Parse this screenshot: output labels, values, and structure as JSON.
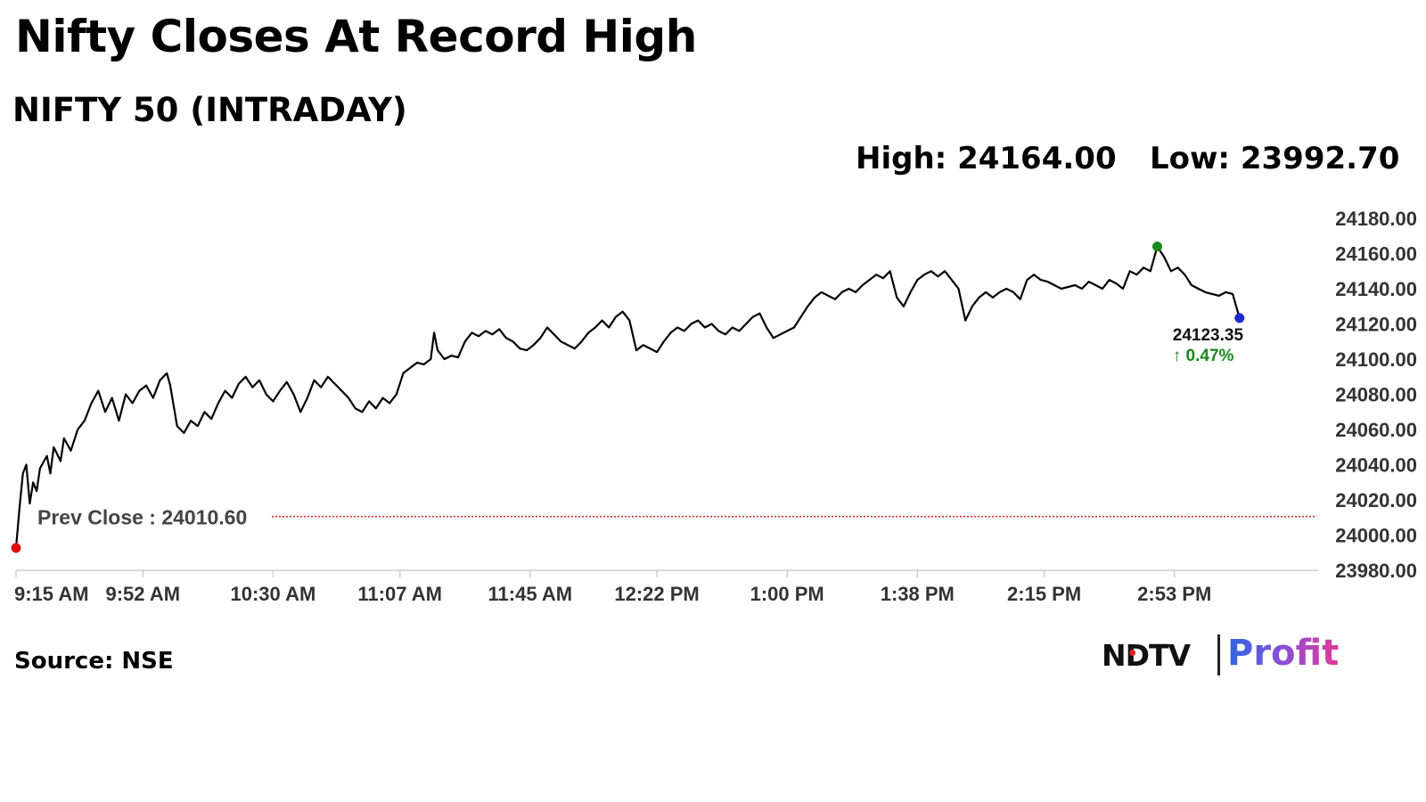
{
  "header": {
    "title": "Nifty Closes At Record High",
    "subtitle": "NIFTY 50 (INTRADAY)",
    "high_text": "High: 24164.00",
    "low_text": "Low: 23992.70"
  },
  "footer": {
    "source": "Source: NSE",
    "logo_left": "NDTV",
    "logo_right": "Profit"
  },
  "colors": {
    "line": "#000000",
    "prev_close_line": "#d42020",
    "high_marker": "#1a8a1a",
    "low_marker": "#e01010",
    "last_marker": "#1f2bd0",
    "change_positive": "#1a8a1a"
  },
  "chart_data": {
    "type": "line",
    "title": "NIFTY 50 (INTRADAY)",
    "xlabel": "",
    "ylabel": "",
    "x_range": [
      "9:15 AM",
      "3:30 PM"
    ],
    "ylim": [
      23980,
      24180
    ],
    "x_ticks": [
      "9:15 AM",
      "9:52 AM",
      "10:30 AM",
      "11:07 AM",
      "11:45 AM",
      "12:22 PM",
      "1:00 PM",
      "1:38 PM",
      "2:15 PM",
      "2:53 PM"
    ],
    "y_ticks": [
      "24180.00",
      "24160.00",
      "24140.00",
      "24120.00",
      "24100.00",
      "24080.00",
      "24060.00",
      "24040.00",
      "24020.00",
      "24000.00",
      "23980.00"
    ],
    "prev_close": 24010.6,
    "prev_close_label": "Prev Close : 24010.60",
    "high": 24164.0,
    "low": 23992.7,
    "last_value_label": "24123.35",
    "change_label": "↑ 0.47%",
    "grid": false,
    "legend": "none",
    "series": [
      {
        "points": [
          [
            "9:15 AM",
            23992.7
          ],
          [
            "9:16 AM",
            24015
          ],
          [
            "9:17 AM",
            24035
          ],
          [
            "9:18 AM",
            24040
          ],
          [
            "9:19 AM",
            24018
          ],
          [
            "9:20 AM",
            24030
          ],
          [
            "9:21 AM",
            24025
          ],
          [
            "9:22 AM",
            24038
          ],
          [
            "9:24 AM",
            24045
          ],
          [
            "9:25 AM",
            24035
          ],
          [
            "9:26 AM",
            24050
          ],
          [
            "9:28 AM",
            24042
          ],
          [
            "9:29 AM",
            24055
          ],
          [
            "9:31 AM",
            24048
          ],
          [
            "9:33 AM",
            24060
          ],
          [
            "9:35 AM",
            24065
          ],
          [
            "9:37 AM",
            24075
          ],
          [
            "9:39 AM",
            24082
          ],
          [
            "9:41 AM",
            24070
          ],
          [
            "9:43 AM",
            24078
          ],
          [
            "9:45 AM",
            24065
          ],
          [
            "9:47 AM",
            24080
          ],
          [
            "9:49 AM",
            24075
          ],
          [
            "9:51 AM",
            24082
          ],
          [
            "9:53 AM",
            24085
          ],
          [
            "9:55 AM",
            24078
          ],
          [
            "9:57 AM",
            24088
          ],
          [
            "9:59 AM",
            24092
          ],
          [
            "10:00 AM",
            24085
          ],
          [
            "10:02 AM",
            24062
          ],
          [
            "10:04 AM",
            24058
          ],
          [
            "10:06 AM",
            24065
          ],
          [
            "10:08 AM",
            24062
          ],
          [
            "10:10 AM",
            24070
          ],
          [
            "10:12 AM",
            24066
          ],
          [
            "10:14 AM",
            24075
          ],
          [
            "10:16 AM",
            24082
          ],
          [
            "10:18 AM",
            24078
          ],
          [
            "10:20 AM",
            24086
          ],
          [
            "10:22 AM",
            24090
          ],
          [
            "10:24 AM",
            24084
          ],
          [
            "10:26 AM",
            24088
          ],
          [
            "10:28 AM",
            24080
          ],
          [
            "10:30 AM",
            24076
          ],
          [
            "10:32 AM",
            24082
          ],
          [
            "10:34 AM",
            24087
          ],
          [
            "10:36 AM",
            24080
          ],
          [
            "10:38 AM",
            24070
          ],
          [
            "10:40 AM",
            24078
          ],
          [
            "10:42 AM",
            24088
          ],
          [
            "10:44 AM",
            24084
          ],
          [
            "10:46 AM",
            24090
          ],
          [
            "10:48 AM",
            24086
          ],
          [
            "10:50 AM",
            24082
          ],
          [
            "10:52 AM",
            24078
          ],
          [
            "10:54 AM",
            24072
          ],
          [
            "10:56 AM",
            24070
          ],
          [
            "10:58 AM",
            24076
          ],
          [
            "11:00 AM",
            24072
          ],
          [
            "11:02 AM",
            24078
          ],
          [
            "11:04 AM",
            24075
          ],
          [
            "11:06 AM",
            24080
          ],
          [
            "11:08 AM",
            24092
          ],
          [
            "11:10 AM",
            24095
          ],
          [
            "11:12 AM",
            24098
          ],
          [
            "11:14 AM",
            24097
          ],
          [
            "11:16 AM",
            24100
          ],
          [
            "11:17 AM",
            24115
          ],
          [
            "11:18 AM",
            24105
          ],
          [
            "11:20 AM",
            24100
          ],
          [
            "11:22 AM",
            24102
          ],
          [
            "11:24 AM",
            24101
          ],
          [
            "11:26 AM",
            24110
          ],
          [
            "11:28 AM",
            24115
          ],
          [
            "11:30 AM",
            24113
          ],
          [
            "11:32 AM",
            24116
          ],
          [
            "11:34 AM",
            24114
          ],
          [
            "11:36 AM",
            24117
          ],
          [
            "11:38 AM",
            24112
          ],
          [
            "11:40 AM",
            24110
          ],
          [
            "11:42 AM",
            24106
          ],
          [
            "11:44 AM",
            24105
          ],
          [
            "11:46 AM",
            24108
          ],
          [
            "11:48 AM",
            24112
          ],
          [
            "11:50 AM",
            24118
          ],
          [
            "11:52 AM",
            24114
          ],
          [
            "11:54 AM",
            24110
          ],
          [
            "11:56 AM",
            24108
          ],
          [
            "11:58 AM",
            24106
          ],
          [
            "12:00 PM",
            24110
          ],
          [
            "12:02 PM",
            24115
          ],
          [
            "12:04 PM",
            24118
          ],
          [
            "12:06 PM",
            24122
          ],
          [
            "12:08 PM",
            24118
          ],
          [
            "12:10 PM",
            24124
          ],
          [
            "12:12 PM",
            24127
          ],
          [
            "12:14 PM",
            24122
          ],
          [
            "12:16 PM",
            24105
          ],
          [
            "12:18 PM",
            24108
          ],
          [
            "12:20 PM",
            24106
          ],
          [
            "12:22 PM",
            24104
          ],
          [
            "12:24 PM",
            24110
          ],
          [
            "12:26 PM",
            24115
          ],
          [
            "12:28 PM",
            24118
          ],
          [
            "12:30 PM",
            24116
          ],
          [
            "12:32 PM",
            24120
          ],
          [
            "12:34 PM",
            24122
          ],
          [
            "12:36 PM",
            24118
          ],
          [
            "12:38 PM",
            24120
          ],
          [
            "12:40 PM",
            24116
          ],
          [
            "12:42 PM",
            24114
          ],
          [
            "12:44 PM",
            24118
          ],
          [
            "12:46 PM",
            24116
          ],
          [
            "12:48 PM",
            24120
          ],
          [
            "12:50 PM",
            24124
          ],
          [
            "12:52 PM",
            24126
          ],
          [
            "12:54 PM",
            24118
          ],
          [
            "12:56 PM",
            24112
          ],
          [
            "12:58 PM",
            24114
          ],
          [
            "1:00 PM",
            24116
          ],
          [
            "1:02 PM",
            24118
          ],
          [
            "1:04 PM",
            24124
          ],
          [
            "1:06 PM",
            24130
          ],
          [
            "1:08 PM",
            24135
          ],
          [
            "1:10 PM",
            24138
          ],
          [
            "1:12 PM",
            24136
          ],
          [
            "1:14 PM",
            24134
          ],
          [
            "1:16 PM",
            24138
          ],
          [
            "1:18 PM",
            24140
          ],
          [
            "1:20 PM",
            24138
          ],
          [
            "1:22 PM",
            24142
          ],
          [
            "1:24 PM",
            24145
          ],
          [
            "1:26 PM",
            24148
          ],
          [
            "1:28 PM",
            24146
          ],
          [
            "1:30 PM",
            24150
          ],
          [
            "1:32 PM",
            24135
          ],
          [
            "1:34 PM",
            24130
          ],
          [
            "1:36 PM",
            24138
          ],
          [
            "1:38 PM",
            24145
          ],
          [
            "1:40 PM",
            24148
          ],
          [
            "1:42 PM",
            24150
          ],
          [
            "1:44 PM",
            24147
          ],
          [
            "1:46 PM",
            24150
          ],
          [
            "1:48 PM",
            24145
          ],
          [
            "1:50 PM",
            24140
          ],
          [
            "1:52 PM",
            24122
          ],
          [
            "1:54 PM",
            24130
          ],
          [
            "1:56 PM",
            24135
          ],
          [
            "1:58 PM",
            24138
          ],
          [
            "2:00 PM",
            24135
          ],
          [
            "2:02 PM",
            24138
          ],
          [
            "2:04 PM",
            24140
          ],
          [
            "2:06 PM",
            24138
          ],
          [
            "2:08 PM",
            24134
          ],
          [
            "2:10 PM",
            24145
          ],
          [
            "2:12 PM",
            24148
          ],
          [
            "2:14 PM",
            24145
          ],
          [
            "2:16 PM",
            24144
          ],
          [
            "2:18 PM",
            24142
          ],
          [
            "2:20 PM",
            24140
          ],
          [
            "2:22 PM",
            24141
          ],
          [
            "2:24 PM",
            24142
          ],
          [
            "2:26 PM",
            24140
          ],
          [
            "2:28 PM",
            24144
          ],
          [
            "2:30 PM",
            24142
          ],
          [
            "2:32 PM",
            24140
          ],
          [
            "2:34 PM",
            24145
          ],
          [
            "2:36 PM",
            24143
          ],
          [
            "2:38 PM",
            24140
          ],
          [
            "2:40 PM",
            24150
          ],
          [
            "2:42 PM",
            24148
          ],
          [
            "2:44 PM",
            24152
          ],
          [
            "2:46 PM",
            24150
          ],
          [
            "2:48 PM",
            24164
          ],
          [
            "2:50 PM",
            24158
          ],
          [
            "2:52 PM",
            24150
          ],
          [
            "2:54 PM",
            24152
          ],
          [
            "2:56 PM",
            24148
          ],
          [
            "2:58 PM",
            24142
          ],
          [
            "3:00 PM",
            24140
          ],
          [
            "3:02 PM",
            24138
          ],
          [
            "3:04 PM",
            24137
          ],
          [
            "3:06 PM",
            24136
          ],
          [
            "3:08 PM",
            24138
          ],
          [
            "3:10 PM",
            24137
          ],
          [
            "3:12 PM",
            24123.35
          ]
        ]
      }
    ]
  }
}
